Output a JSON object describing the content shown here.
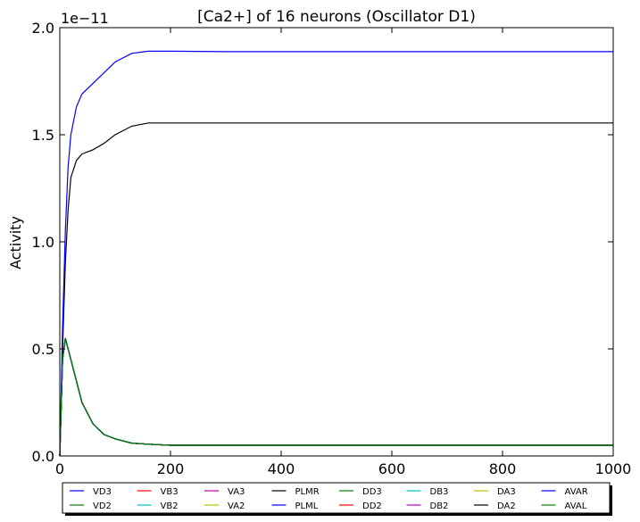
{
  "chart_data": {
    "type": "line",
    "title": "[Ca2+] of 16 neurons (Oscillator D1)",
    "xlabel": "",
    "ylabel": "Activity",
    "scale_label": "1e−11",
    "xlim": [
      0,
      1000
    ],
    "ylim": [
      0,
      2.0
    ],
    "xticks": [
      "0",
      "200",
      "400",
      "600",
      "800",
      "1000"
    ],
    "yticks": [
      "0.0",
      "0.5",
      "1.0",
      "1.5",
      "2.0"
    ],
    "grid": false,
    "legend_position": "bottom",
    "series": [
      {
        "name": "VD3",
        "color": "#0000ff",
        "x": [
          0,
          5,
          10,
          20,
          40,
          60,
          80,
          100,
          130,
          160,
          200,
          300,
          1000
        ],
        "y": [
          0.0,
          0.45,
          0.55,
          0.45,
          0.25,
          0.15,
          0.1,
          0.08,
          0.06,
          0.055,
          0.05,
          0.05,
          0.05
        ]
      },
      {
        "name": "VD2",
        "color": "#008000",
        "x": [
          0,
          5,
          10,
          20,
          40,
          60,
          80,
          100,
          130,
          160,
          200,
          300,
          1000
        ],
        "y": [
          0.0,
          0.45,
          0.55,
          0.45,
          0.25,
          0.15,
          0.1,
          0.08,
          0.06,
          0.055,
          0.05,
          0.05,
          0.05
        ]
      },
      {
        "name": "VB3",
        "color": "#ff0000",
        "x": [
          0,
          5,
          10,
          20,
          40,
          60,
          80,
          100,
          130,
          160,
          200,
          300,
          1000
        ],
        "y": [
          0.0,
          0.45,
          0.55,
          0.45,
          0.25,
          0.15,
          0.1,
          0.08,
          0.06,
          0.055,
          0.05,
          0.05,
          0.05
        ]
      },
      {
        "name": "VB2",
        "color": "#00bfbf",
        "x": [
          0,
          5,
          10,
          20,
          40,
          60,
          80,
          100,
          130,
          160,
          200,
          300,
          1000
        ],
        "y": [
          0.0,
          0.45,
          0.55,
          0.45,
          0.25,
          0.15,
          0.1,
          0.08,
          0.06,
          0.055,
          0.05,
          0.05,
          0.05
        ]
      },
      {
        "name": "VA3",
        "color": "#bf00bf",
        "x": [
          0,
          5,
          10,
          20,
          40,
          60,
          80,
          100,
          130,
          160,
          200,
          300,
          1000
        ],
        "y": [
          0.0,
          0.45,
          0.55,
          0.45,
          0.25,
          0.15,
          0.1,
          0.08,
          0.06,
          0.055,
          0.05,
          0.05,
          0.05
        ]
      },
      {
        "name": "VA2",
        "color": "#bfbf00",
        "x": [
          0,
          5,
          10,
          20,
          40,
          60,
          80,
          100,
          130,
          160,
          200,
          300,
          1000
        ],
        "y": [
          0.0,
          0.45,
          0.55,
          0.45,
          0.25,
          0.15,
          0.1,
          0.08,
          0.06,
          0.055,
          0.05,
          0.05,
          0.05
        ]
      },
      {
        "name": "PLMR",
        "color": "#000000",
        "x": [
          0,
          5,
          10,
          15,
          20,
          30,
          40,
          60,
          80,
          100,
          130,
          160,
          200,
          300,
          1000
        ],
        "y": [
          0.0,
          0.5,
          0.9,
          1.15,
          1.3,
          1.38,
          1.41,
          1.43,
          1.46,
          1.5,
          1.54,
          1.555,
          1.555,
          1.555,
          1.555
        ]
      },
      {
        "name": "PLML",
        "color": "#0000ff",
        "x": [
          0,
          5,
          10,
          15,
          20,
          30,
          40,
          60,
          80,
          100,
          130,
          160,
          200,
          300,
          1000
        ],
        "y": [
          0.0,
          0.6,
          1.05,
          1.35,
          1.5,
          1.63,
          1.69,
          1.74,
          1.79,
          1.84,
          1.88,
          1.89,
          1.89,
          1.888,
          1.888
        ]
      },
      {
        "name": "DD3",
        "color": "#008000",
        "x": [
          0,
          5,
          10,
          20,
          40,
          60,
          80,
          100,
          130,
          160,
          200,
          300,
          1000
        ],
        "y": [
          0.0,
          0.45,
          0.55,
          0.45,
          0.25,
          0.15,
          0.1,
          0.08,
          0.06,
          0.055,
          0.05,
          0.05,
          0.05
        ]
      },
      {
        "name": "DD2",
        "color": "#ff0000",
        "x": [
          0,
          5,
          10,
          20,
          40,
          60,
          80,
          100,
          130,
          160,
          200,
          300,
          1000
        ],
        "y": [
          0.0,
          0.45,
          0.55,
          0.45,
          0.25,
          0.15,
          0.1,
          0.08,
          0.06,
          0.055,
          0.05,
          0.05,
          0.05
        ]
      },
      {
        "name": "DB3",
        "color": "#00bfbf",
        "x": [
          0,
          5,
          10,
          20,
          40,
          60,
          80,
          100,
          130,
          160,
          200,
          300,
          1000
        ],
        "y": [
          0.0,
          0.45,
          0.55,
          0.45,
          0.25,
          0.15,
          0.1,
          0.08,
          0.06,
          0.055,
          0.05,
          0.05,
          0.05
        ]
      },
      {
        "name": "DB2",
        "color": "#bf00bf",
        "x": [
          0,
          5,
          10,
          20,
          40,
          60,
          80,
          100,
          130,
          160,
          200,
          300,
          1000
        ],
        "y": [
          0.0,
          0.45,
          0.55,
          0.45,
          0.25,
          0.15,
          0.1,
          0.08,
          0.06,
          0.055,
          0.05,
          0.05,
          0.05
        ]
      },
      {
        "name": "DA3",
        "color": "#bfbf00",
        "x": [
          0,
          5,
          10,
          20,
          40,
          60,
          80,
          100,
          130,
          160,
          200,
          300,
          1000
        ],
        "y": [
          0.0,
          0.45,
          0.55,
          0.45,
          0.25,
          0.15,
          0.1,
          0.08,
          0.06,
          0.055,
          0.05,
          0.05,
          0.05
        ]
      },
      {
        "name": "DA2",
        "color": "#000000",
        "x": [
          0,
          5,
          10,
          20,
          40,
          60,
          80,
          100,
          130,
          160,
          200,
          300,
          1000
        ],
        "y": [
          0.0,
          0.45,
          0.55,
          0.45,
          0.25,
          0.15,
          0.1,
          0.08,
          0.06,
          0.055,
          0.05,
          0.05,
          0.05
        ]
      },
      {
        "name": "AVAR",
        "color": "#0000ff",
        "x": [
          0,
          5,
          10,
          20,
          40,
          60,
          80,
          100,
          130,
          160,
          200,
          300,
          1000
        ],
        "y": [
          0.0,
          0.45,
          0.55,
          0.45,
          0.25,
          0.15,
          0.1,
          0.08,
          0.06,
          0.055,
          0.05,
          0.05,
          0.05
        ]
      },
      {
        "name": "AVAL",
        "color": "#008000",
        "x": [
          0,
          5,
          10,
          20,
          40,
          60,
          80,
          100,
          130,
          160,
          200,
          300,
          1000
        ],
        "y": [
          0.0,
          0.45,
          0.55,
          0.45,
          0.25,
          0.15,
          0.1,
          0.08,
          0.06,
          0.055,
          0.05,
          0.05,
          0.05
        ]
      }
    ]
  }
}
